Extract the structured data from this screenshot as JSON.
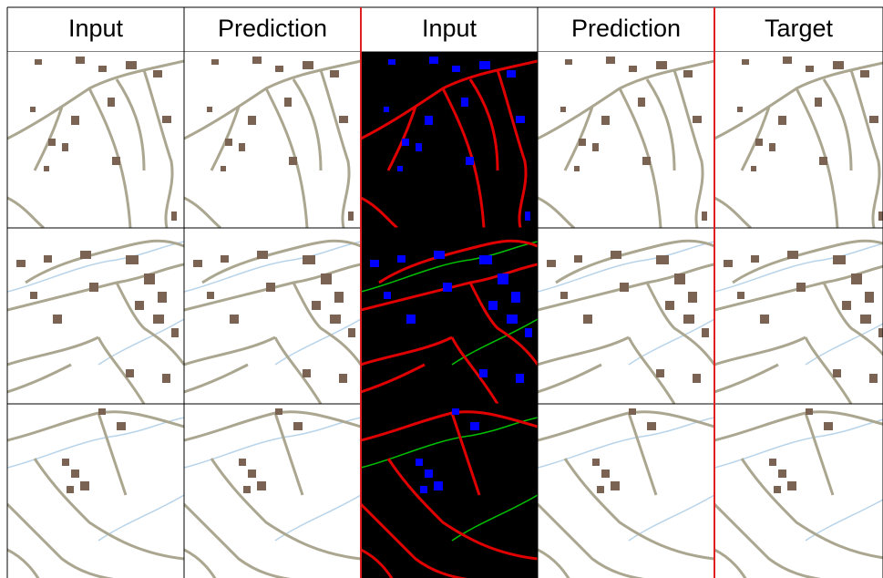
{
  "headers": [
    "Input",
    "Prediction",
    "Input",
    "Prediction",
    "Target"
  ]
}
